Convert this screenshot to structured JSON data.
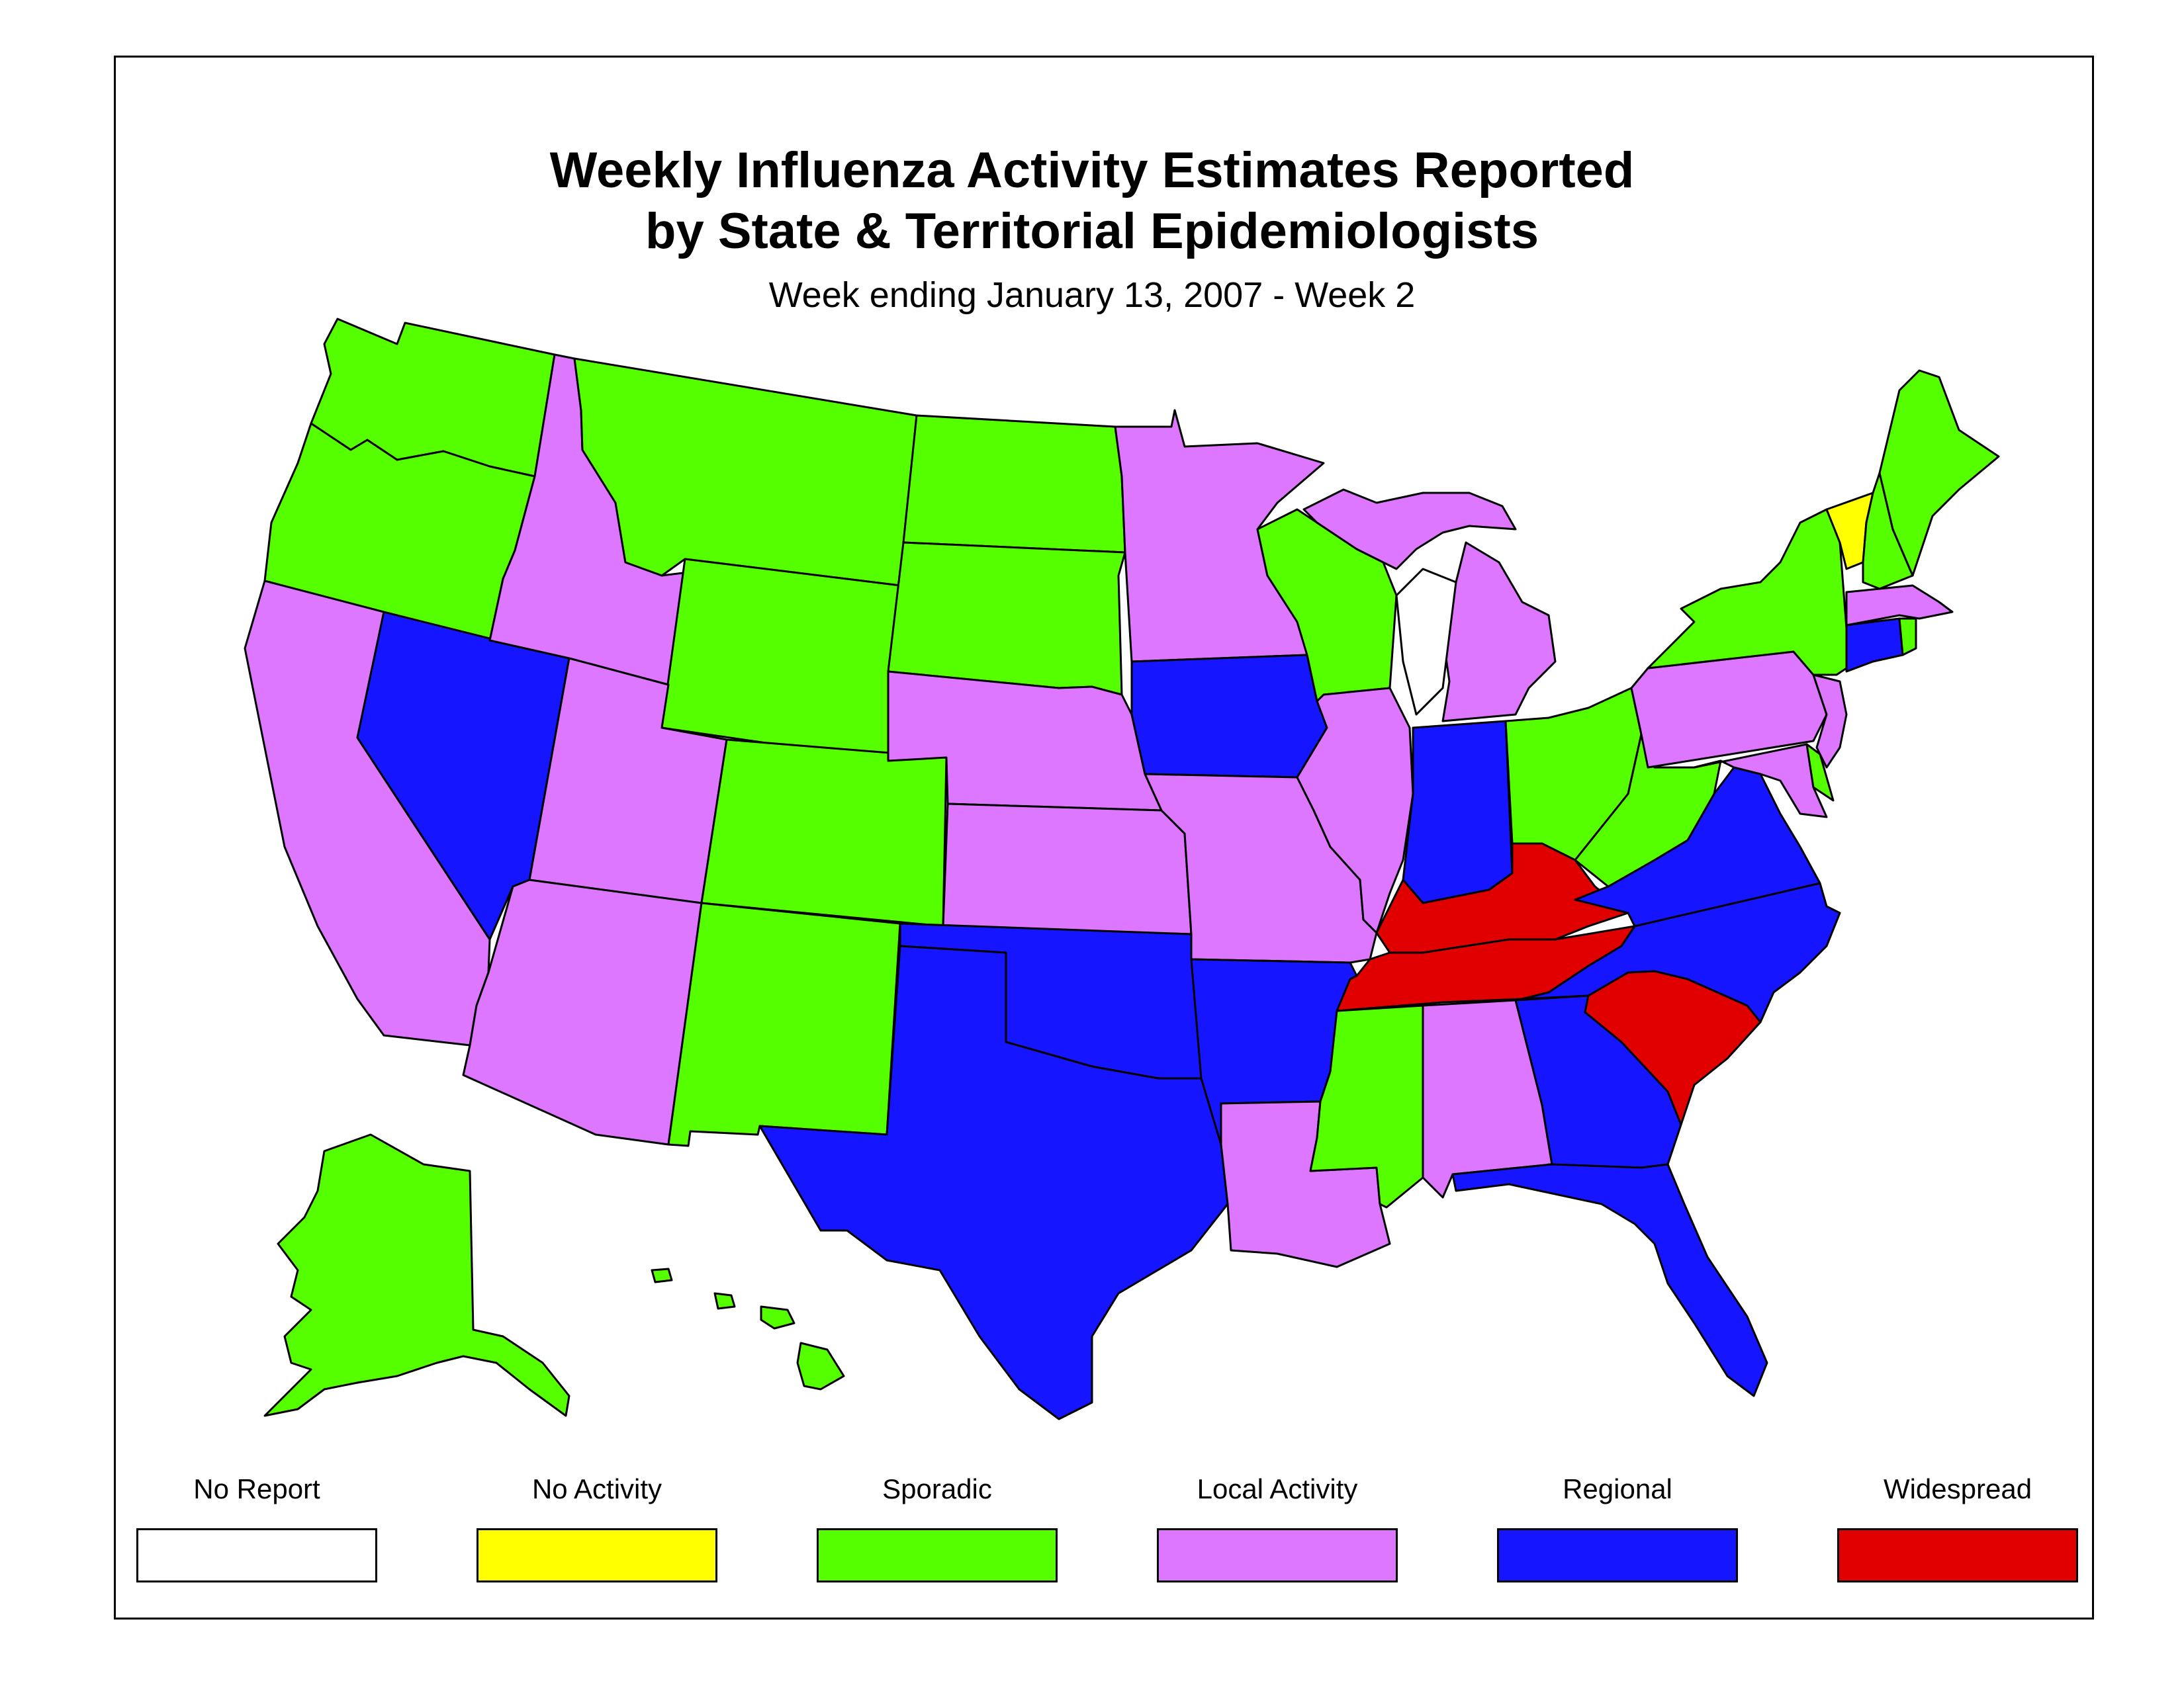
{
  "title": {
    "line1": "Weekly Influenza Activity Estimates Reported",
    "line2": "by State & Territorial Epidemiologists"
  },
  "subtitle": "Week ending January 13, 2007 - Week 2",
  "levels": {
    "no_report": {
      "label": "No Report",
      "color": "#FFFFFF"
    },
    "no_activity": {
      "label": "No Activity",
      "color": "#FFFF00"
    },
    "sporadic": {
      "label": "Sporadic",
      "color": "#55FF00"
    },
    "local": {
      "label": "Local Activity",
      "color": "#DD77FF"
    },
    "regional": {
      "label": "Regional",
      "color": "#1515FF"
    },
    "widespread": {
      "label": "Widespread",
      "color": "#E00000"
    }
  },
  "legend_order": [
    "no_report",
    "no_activity",
    "sporadic",
    "local",
    "regional",
    "widespread"
  ],
  "states": {
    "WA": "sporadic",
    "OR": "sporadic",
    "CA": "local",
    "NV": "regional",
    "ID": "local",
    "MT": "sporadic",
    "WY": "sporadic",
    "UT": "local",
    "AZ": "local",
    "CO": "sporadic",
    "NM": "sporadic",
    "ND": "sporadic",
    "SD": "sporadic",
    "NE": "local",
    "KS": "local",
    "OK": "regional",
    "TX": "regional",
    "MN": "local",
    "IA": "regional",
    "MO": "local",
    "AR": "regional",
    "LA": "local",
    "WI": "sporadic",
    "IL": "local",
    "MI": "local",
    "IN": "regional",
    "OH": "sporadic",
    "KY": "widespread",
    "TN": "widespread",
    "MS": "sporadic",
    "AL": "local",
    "GA": "regional",
    "FL": "regional",
    "SC": "widespread",
    "NC": "regional",
    "VA": "regional",
    "WV": "sporadic",
    "MD": "local",
    "DE": "sporadic",
    "PA": "local",
    "NJ": "local",
    "NY": "sporadic",
    "CT": "regional",
    "RI": "sporadic",
    "MA": "local",
    "VT": "no_activity",
    "NH": "sporadic",
    "ME": "sporadic",
    "AK": "sporadic",
    "HI": "sporadic"
  }
}
